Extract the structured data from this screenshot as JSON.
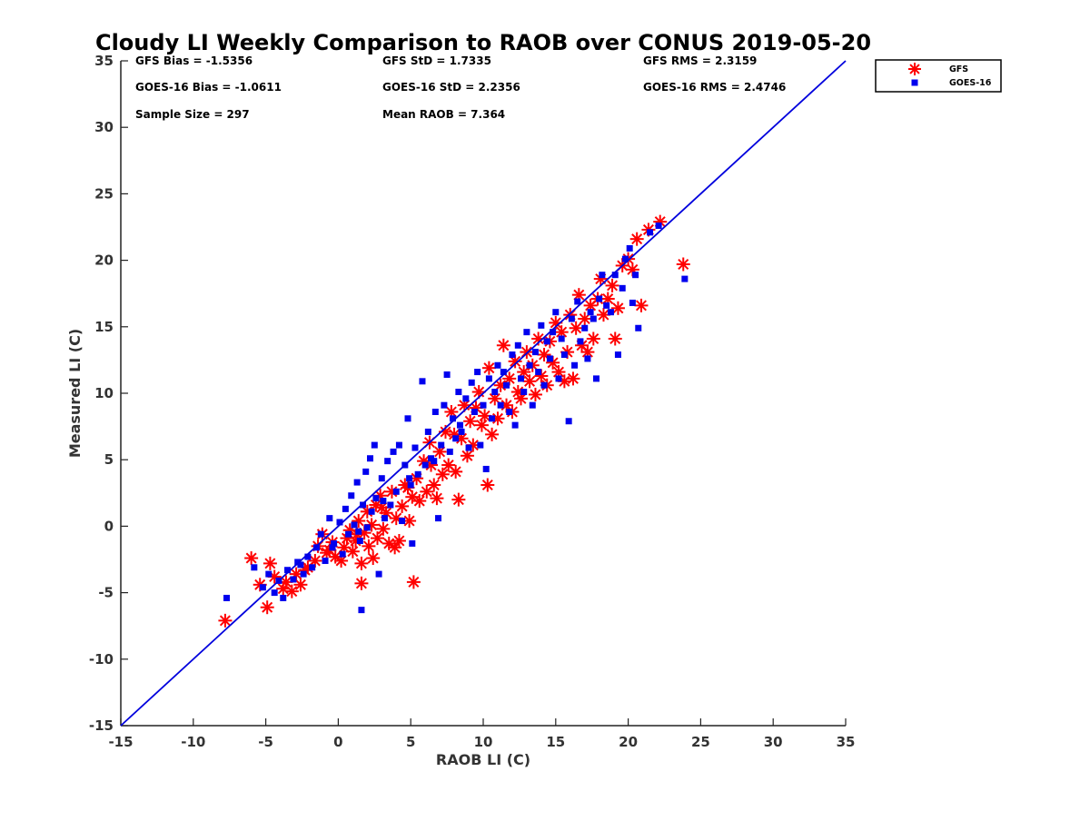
{
  "chart_data": {
    "type": "scatter",
    "title": "Cloudy LI Weekly Comparison to RAOB over CONUS 2019-05-20",
    "xlabel": "RAOB LI (C)",
    "ylabel": "Measured LI (C)",
    "xlim": [
      -15,
      35
    ],
    "ylim": [
      -15,
      35
    ],
    "xticks": [
      -15,
      -10,
      -5,
      0,
      5,
      10,
      15,
      20,
      25,
      30,
      35
    ],
    "yticks": [
      -15,
      -10,
      -5,
      0,
      5,
      10,
      15,
      20,
      25,
      30,
      35
    ],
    "reference_line": {
      "from": [
        -15,
        -15
      ],
      "to": [
        35,
        35
      ],
      "color": "#0000dd"
    },
    "stats": [
      [
        "GFS Bias = -1.5356",
        "GFS StD = 1.7335",
        "GFS RMS = 2.3159"
      ],
      [
        "GOES-16 Bias = -1.0611",
        "GOES-16 StD = 2.2356",
        "GOES-16 RMS = 2.4746"
      ],
      [
        "Sample Size = 297",
        "Mean RAOB = 7.364",
        ""
      ]
    ],
    "legend_position": "top-right",
    "series": [
      {
        "name": "GFS",
        "marker": "asterisk",
        "color": "#ff0000",
        "points": [
          [
            -7.8,
            -7.1
          ],
          [
            -6.0,
            -2.4
          ],
          [
            -5.4,
            -4.4
          ],
          [
            -4.9,
            -6.1
          ],
          [
            -4.7,
            -2.8
          ],
          [
            -4.4,
            -3.8
          ],
          [
            -3.8,
            -4.7
          ],
          [
            -3.6,
            -4.2
          ],
          [
            -3.2,
            -4.9
          ],
          [
            -2.9,
            -3.6
          ],
          [
            -2.6,
            -4.4
          ],
          [
            -2.1,
            -3.1
          ],
          [
            -1.6,
            -2.6
          ],
          [
            -1.4,
            -1.5
          ],
          [
            -1.1,
            -0.6
          ],
          [
            -0.8,
            -2.0
          ],
          [
            -0.4,
            -1.2
          ],
          [
            -0.2,
            -2.3
          ],
          [
            0.2,
            -2.6
          ],
          [
            0.4,
            -1.6
          ],
          [
            0.6,
            -0.9
          ],
          [
            0.8,
            -0.3
          ],
          [
            1.0,
            -1.9
          ],
          [
            1.2,
            -1.1
          ],
          [
            1.4,
            0.4
          ],
          [
            1.6,
            -2.8
          ],
          [
            1.6,
            -4.3
          ],
          [
            1.8,
            -0.5
          ],
          [
            2.0,
            1.1
          ],
          [
            2.1,
            -1.5
          ],
          [
            2.3,
            0.1
          ],
          [
            2.4,
            -2.4
          ],
          [
            2.6,
            1.6
          ],
          [
            2.7,
            -0.9
          ],
          [
            2.9,
            2.3
          ],
          [
            3.1,
            -0.2
          ],
          [
            3.3,
            1.0
          ],
          [
            3.5,
            -1.3
          ],
          [
            3.7,
            2.6
          ],
          [
            3.9,
            -1.6
          ],
          [
            4.0,
            0.6
          ],
          [
            4.2,
            -1.1
          ],
          [
            4.4,
            1.5
          ],
          [
            4.6,
            3.1
          ],
          [
            4.9,
            0.4
          ],
          [
            5.1,
            2.2
          ],
          [
            5.2,
            -4.2
          ],
          [
            5.4,
            3.6
          ],
          [
            5.6,
            1.9
          ],
          [
            5.9,
            4.9
          ],
          [
            6.1,
            2.6
          ],
          [
            6.3,
            6.3
          ],
          [
            6.6,
            3.1
          ],
          [
            6.8,
            2.1
          ],
          [
            7.0,
            5.6
          ],
          [
            7.2,
            3.9
          ],
          [
            7.4,
            7.1
          ],
          [
            7.6,
            4.6
          ],
          [
            7.8,
            8.6
          ],
          [
            8.1,
            4.1
          ],
          [
            8.3,
            2.0
          ],
          [
            8.5,
            6.6
          ],
          [
            8.7,
            9.1
          ],
          [
            8.9,
            5.3
          ],
          [
            9.1,
            7.9
          ],
          [
            9.3,
            6.1
          ],
          [
            9.5,
            8.9
          ],
          [
            9.7,
            10.1
          ],
          [
            9.9,
            7.6
          ],
          [
            10.1,
            8.3
          ],
          [
            10.3,
            3.1
          ],
          [
            10.4,
            11.9
          ],
          [
            10.6,
            6.9
          ],
          [
            10.8,
            9.6
          ],
          [
            11.0,
            8.1
          ],
          [
            11.2,
            10.6
          ],
          [
            11.4,
            13.6
          ],
          [
            11.6,
            9.1
          ],
          [
            11.8,
            11.1
          ],
          [
            12.0,
            8.6
          ],
          [
            12.2,
            12.4
          ],
          [
            12.4,
            10.1
          ],
          [
            12.6,
            9.6
          ],
          [
            12.8,
            11.6
          ],
          [
            13.0,
            13.1
          ],
          [
            13.2,
            10.9
          ],
          [
            13.4,
            12.1
          ],
          [
            13.6,
            9.9
          ],
          [
            13.8,
            14.1
          ],
          [
            14.0,
            11.3
          ],
          [
            14.2,
            12.9
          ],
          [
            14.4,
            10.6
          ],
          [
            14.6,
            13.9
          ],
          [
            14.8,
            12.3
          ],
          [
            15.0,
            15.3
          ],
          [
            15.2,
            11.6
          ],
          [
            15.4,
            14.6
          ],
          [
            15.6,
            10.9
          ],
          [
            15.8,
            13.1
          ],
          [
            16.0,
            15.9
          ],
          [
            16.2,
            11.1
          ],
          [
            16.4,
            14.9
          ],
          [
            16.6,
            17.4
          ],
          [
            16.8,
            13.6
          ],
          [
            17.0,
            15.6
          ],
          [
            17.2,
            13.1
          ],
          [
            17.4,
            16.6
          ],
          [
            17.6,
            14.1
          ],
          [
            17.9,
            17.1
          ],
          [
            18.1,
            18.6
          ],
          [
            18.3,
            15.9
          ],
          [
            18.6,
            17.1
          ],
          [
            18.9,
            18.1
          ],
          [
            19.1,
            14.1
          ],
          [
            19.3,
            16.4
          ],
          [
            19.6,
            19.6
          ],
          [
            20.0,
            20.1
          ],
          [
            20.3,
            19.3
          ],
          [
            20.6,
            21.6
          ],
          [
            20.9,
            16.6
          ],
          [
            21.4,
            22.3
          ],
          [
            22.2,
            22.9
          ],
          [
            23.8,
            19.7
          ],
          [
            -2.3,
            -3.3
          ],
          [
            -0.6,
            -1.8
          ],
          [
            1.3,
            -0.6
          ],
          [
            3.0,
            1.4
          ],
          [
            4.8,
            2.9
          ],
          [
            6.4,
            4.6
          ],
          [
            8.0,
            6.9
          ]
        ]
      },
      {
        "name": "GOES-16",
        "marker": "square",
        "color": "#0000ee",
        "points": [
          [
            -7.7,
            -5.4
          ],
          [
            -5.8,
            -3.1
          ],
          [
            -5.2,
            -4.6
          ],
          [
            -4.8,
            -3.6
          ],
          [
            -4.4,
            -5.0
          ],
          [
            -4.1,
            -4.1
          ],
          [
            -3.8,
            -5.4
          ],
          [
            -3.5,
            -3.3
          ],
          [
            -3.1,
            -4.0
          ],
          [
            -2.8,
            -2.7
          ],
          [
            -2.4,
            -3.6
          ],
          [
            -2.1,
            -2.3
          ],
          [
            -1.8,
            -3.1
          ],
          [
            -1.5,
            -1.6
          ],
          [
            -1.2,
            -0.6
          ],
          [
            -0.9,
            -2.6
          ],
          [
            -0.6,
            0.6
          ],
          [
            -0.3,
            -1.3
          ],
          [
            0.1,
            0.3
          ],
          [
            0.3,
            -2.1
          ],
          [
            0.5,
            1.3
          ],
          [
            0.7,
            -0.6
          ],
          [
            0.9,
            2.3
          ],
          [
            1.1,
            0.1
          ],
          [
            1.3,
            3.3
          ],
          [
            1.5,
            -1.1
          ],
          [
            1.6,
            -6.3
          ],
          [
            1.7,
            1.6
          ],
          [
            1.9,
            4.1
          ],
          [
            2.0,
            -0.1
          ],
          [
            2.2,
            5.1
          ],
          [
            2.3,
            1.1
          ],
          [
            2.5,
            6.1
          ],
          [
            2.6,
            2.1
          ],
          [
            2.8,
            -3.6
          ],
          [
            3.0,
            3.6
          ],
          [
            3.2,
            0.6
          ],
          [
            3.4,
            4.9
          ],
          [
            3.6,
            1.6
          ],
          [
            3.8,
            5.6
          ],
          [
            4.0,
            2.6
          ],
          [
            4.2,
            6.1
          ],
          [
            4.4,
            0.4
          ],
          [
            4.6,
            4.6
          ],
          [
            4.8,
            8.1
          ],
          [
            5.0,
            3.1
          ],
          [
            5.1,
            -1.3
          ],
          [
            5.3,
            5.9
          ],
          [
            5.5,
            3.9
          ],
          [
            5.8,
            10.9
          ],
          [
            6.0,
            4.6
          ],
          [
            6.2,
            7.1
          ],
          [
            6.4,
            5.1
          ],
          [
            6.7,
            8.6
          ],
          [
            6.9,
            0.6
          ],
          [
            7.1,
            6.1
          ],
          [
            7.3,
            9.1
          ],
          [
            7.5,
            11.4
          ],
          [
            7.7,
            5.6
          ],
          [
            7.9,
            8.1
          ],
          [
            8.1,
            6.6
          ],
          [
            8.3,
            10.1
          ],
          [
            8.5,
            7.1
          ],
          [
            8.8,
            9.6
          ],
          [
            9.0,
            5.9
          ],
          [
            9.2,
            10.8
          ],
          [
            9.4,
            8.6
          ],
          [
            9.6,
            11.6
          ],
          [
            9.8,
            6.1
          ],
          [
            10.0,
            9.1
          ],
          [
            10.2,
            4.3
          ],
          [
            10.4,
            11.1
          ],
          [
            10.6,
            8.1
          ],
          [
            10.8,
            10.1
          ],
          [
            11.0,
            12.1
          ],
          [
            11.2,
            9.1
          ],
          [
            11.4,
            11.6
          ],
          [
            11.6,
            10.6
          ],
          [
            11.8,
            8.6
          ],
          [
            12.0,
            12.9
          ],
          [
            12.2,
            7.6
          ],
          [
            12.4,
            13.6
          ],
          [
            12.6,
            11.1
          ],
          [
            12.8,
            10.1
          ],
          [
            13.0,
            14.6
          ],
          [
            13.2,
            12.1
          ],
          [
            13.4,
            9.1
          ],
          [
            13.6,
            13.1
          ],
          [
            13.8,
            11.6
          ],
          [
            14.0,
            15.1
          ],
          [
            14.2,
            10.6
          ],
          [
            14.4,
            13.9
          ],
          [
            14.6,
            12.6
          ],
          [
            14.8,
            14.6
          ],
          [
            15.0,
            16.1
          ],
          [
            15.2,
            11.1
          ],
          [
            15.4,
            14.1
          ],
          [
            15.6,
            12.9
          ],
          [
            15.9,
            7.9
          ],
          [
            16.1,
            15.6
          ],
          [
            16.3,
            12.1
          ],
          [
            16.5,
            16.9
          ],
          [
            16.7,
            13.9
          ],
          [
            17.0,
            14.9
          ],
          [
            17.2,
            12.6
          ],
          [
            17.4,
            16.1
          ],
          [
            17.6,
            15.6
          ],
          [
            17.8,
            11.1
          ],
          [
            18.0,
            17.1
          ],
          [
            18.2,
            18.9
          ],
          [
            18.5,
            16.6
          ],
          [
            18.8,
            16.1
          ],
          [
            19.1,
            18.9
          ],
          [
            19.3,
            12.9
          ],
          [
            19.6,
            17.9
          ],
          [
            19.8,
            20.1
          ],
          [
            20.1,
            20.9
          ],
          [
            20.3,
            16.8
          ],
          [
            20.5,
            18.9
          ],
          [
            20.7,
            14.9
          ],
          [
            21.5,
            22.1
          ],
          [
            22.1,
            22.6
          ],
          [
            23.9,
            18.6
          ],
          [
            -2.6,
            -2.9
          ],
          [
            -0.4,
            -1.6
          ],
          [
            1.4,
            -0.4
          ],
          [
            3.1,
            1.9
          ],
          [
            4.9,
            3.6
          ],
          [
            6.6,
            4.9
          ],
          [
            8.4,
            7.6
          ]
        ]
      }
    ]
  }
}
